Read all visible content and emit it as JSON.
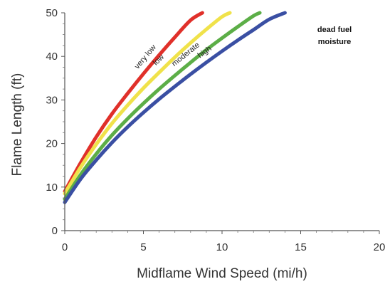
{
  "chart_data": {
    "type": "line",
    "title": "",
    "xlabel": "Midflame Wind Speed (mi/h)",
    "ylabel": "Flame Length (ft)",
    "xlim": [
      0,
      20
    ],
    "ylim": [
      0,
      50
    ],
    "xticks": [
      0,
      5,
      10,
      15,
      20
    ],
    "yticks": [
      0,
      10,
      20,
      30,
      40,
      50
    ],
    "grid": false,
    "legend_title": [
      "dead fuel",
      "moisture"
    ],
    "series": [
      {
        "name": "very low",
        "color": "#e0302a",
        "x": [
          0,
          1,
          2,
          3,
          4,
          5,
          6,
          7,
          8,
          8.75
        ],
        "y": [
          9,
          15.5,
          21.5,
          26.8,
          31.5,
          36,
          40.3,
          44.4,
          48.3,
          50
        ]
      },
      {
        "name": "low",
        "color": "#f0e24a",
        "x": [
          0,
          1,
          2,
          3,
          4,
          5,
          6,
          7,
          8,
          9,
          10,
          10.5
        ],
        "y": [
          8.5,
          14.5,
          19.8,
          24.6,
          28.8,
          32.7,
          36.3,
          39.8,
          43.1,
          46.2,
          49.1,
          50
        ]
      },
      {
        "name": "moderate",
        "color": "#5cae47",
        "x": [
          0,
          1,
          2,
          3,
          4,
          5,
          6,
          7,
          8,
          9,
          10,
          11,
          12,
          12.4
        ],
        "y": [
          7.2,
          12.8,
          17.6,
          21.9,
          25.7,
          29.2,
          32.5,
          35.6,
          38.6,
          41.5,
          44.2,
          46.8,
          49.3,
          50
        ]
      },
      {
        "name": "high",
        "color": "#3a4fa3",
        "x": [
          0,
          1,
          2,
          3,
          4,
          5,
          6,
          7,
          8,
          9,
          10,
          11,
          12,
          13,
          14
        ],
        "y": [
          6.5,
          11.8,
          16.2,
          20.2,
          23.8,
          27.1,
          30.2,
          33.1,
          35.9,
          38.6,
          41.2,
          43.7,
          46.1,
          48.5,
          50
        ]
      }
    ]
  }
}
